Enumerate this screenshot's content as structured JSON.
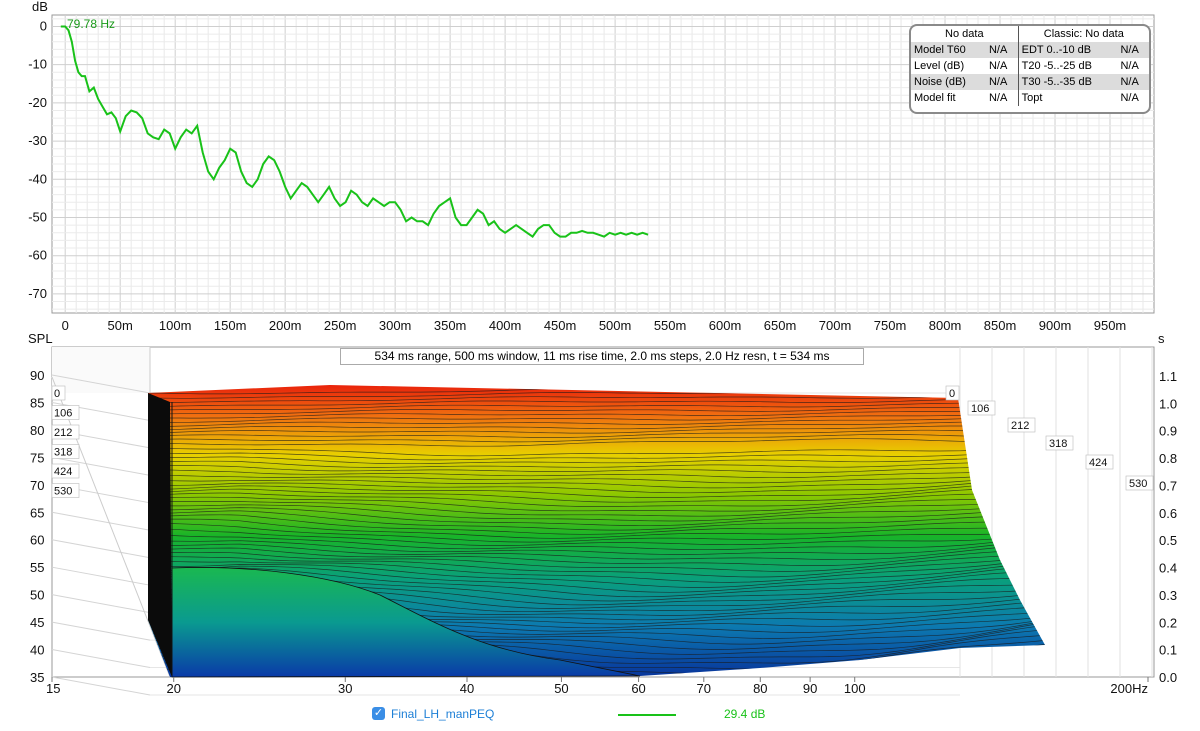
{
  "app": {
    "peak_label": "79.78 Hz",
    "legend": {
      "checked": true,
      "name": "Final_LH_manPEQ",
      "value": "29.4 dB",
      "line_color": "#19c219"
    }
  },
  "stats": {
    "header_left": "No data",
    "header_right": "Classic: No data",
    "rows": [
      {
        "k1": "Model T60",
        "v1": "N/A",
        "k2": "EDT  0..-10 dB",
        "v2": "N/A"
      },
      {
        "k1": "Level (dB)",
        "v1": "N/A",
        "k2": "T20 -5..-25 dB",
        "v2": "N/A"
      },
      {
        "k1": "Noise (dB)",
        "v1": "N/A",
        "k2": "T30 -5..-35 dB",
        "v2": "N/A"
      },
      {
        "k1": "Model fit",
        "v1": "N/A",
        "k2": "Topt",
        "v2": "N/A"
      }
    ]
  },
  "chart_data": [
    {
      "type": "line",
      "ylabel": "dB",
      "ylim": [
        -75,
        3
      ],
      "xlim_ms": [
        -12,
        990
      ],
      "y_ticks": [
        "0",
        "-10",
        "-20",
        "-30",
        "-40",
        "-50",
        "-60",
        "-70"
      ],
      "x_ticks": [
        "0",
        "50m",
        "100m",
        "150m",
        "200m",
        "250m",
        "300m",
        "350m",
        "400m",
        "450m",
        "500m",
        "550m",
        "600m",
        "650m",
        "700m",
        "750m",
        "800m",
        "850m",
        "900m",
        "950m"
      ],
      "grid": true,
      "series": [
        {
          "color": "#19c219",
          "x_ms": [
            -4,
            0,
            3,
            6,
            9,
            12,
            15,
            18,
            22,
            26,
            30,
            34,
            38,
            42,
            46,
            50,
            55,
            60,
            65,
            70,
            75,
            80,
            85,
            90,
            95,
            100,
            105,
            110,
            115,
            120,
            125,
            130,
            135,
            140,
            145,
            150,
            155,
            160,
            165,
            170,
            175,
            180,
            185,
            190,
            195,
            200,
            205,
            210,
            215,
            220,
            225,
            230,
            235,
            240,
            245,
            250,
            255,
            260,
            265,
            270,
            275,
            280,
            285,
            290,
            295,
            300,
            305,
            310,
            315,
            320,
            325,
            330,
            335,
            340,
            345,
            350,
            355,
            360,
            365,
            370,
            375,
            380,
            385,
            390,
            395,
            400,
            405,
            410,
            415,
            420,
            425,
            430,
            435,
            440,
            445,
            450,
            455,
            460,
            465,
            470,
            475,
            480,
            485,
            490,
            495,
            500,
            505,
            510,
            515,
            520,
            525,
            530
          ],
          "y_db": [
            0,
            0,
            -1,
            -4,
            -9,
            -12,
            -13,
            -13,
            -17,
            -16,
            -19,
            -21,
            -23,
            -22.5,
            -24,
            -27.5,
            -23.5,
            -22,
            -22.5,
            -24,
            -28,
            -29,
            -29.5,
            -27,
            -28,
            -32,
            -29,
            -27,
            -28,
            -26,
            -33,
            -38,
            -40,
            -37,
            -35,
            -32,
            -33,
            -38,
            -41,
            -42,
            -40,
            -36,
            -34,
            -35,
            -38,
            -42,
            -45,
            -43,
            -41,
            -42,
            -44,
            -46,
            -44,
            -42,
            -45,
            -47,
            -46,
            -43,
            -44,
            -46,
            -47,
            -45,
            -46,
            -47,
            -46,
            -46,
            -48,
            -51,
            -50,
            -51,
            -51,
            -52,
            -49,
            -47,
            -46,
            -45,
            -50,
            -52,
            -52,
            -50,
            -48,
            -49,
            -52,
            -51,
            -53,
            -54,
            -53,
            -52,
            -53,
            -54,
            -55,
            -53,
            -52,
            -52,
            -54,
            -55,
            -55,
            -54,
            -54,
            -53.5,
            -54,
            -54,
            -54.5,
            -55,
            -54,
            -54.5,
            -54,
            -54.5,
            -54,
            -54.5,
            -54,
            -54.5
          ]
        }
      ]
    },
    {
      "type": "waterfall",
      "title": "534 ms range, 500 ms window, 11 ms rise time, 2.0 ms steps,  2.0 Hz resn, t = 534 ms",
      "ylabel": "SPL",
      "y_ticks": [
        "90",
        "85",
        "80",
        "75",
        "70",
        "65",
        "60",
        "55",
        "50",
        "45",
        "40",
        "35"
      ],
      "right_axis_label": "s",
      "right_ticks": [
        "1.1",
        "1.0",
        "0.9",
        "0.8",
        "0.7",
        "0.6",
        "0.5",
        "0.4",
        "0.3",
        "0.2",
        "0.1",
        "0.0"
      ],
      "x_ticks": [
        "15",
        "20",
        "30",
        "40",
        "50",
        "60",
        "70",
        "80",
        "90",
        "100",
        "200Hz"
      ],
      "x_values_hz": [
        15,
        20,
        30,
        40,
        50,
        60,
        70,
        80,
        90,
        100,
        200
      ],
      "depth_labels_left": [
        "0",
        "106",
        "212",
        "318",
        "424",
        "530"
      ],
      "depth_labels_right": [
        "0",
        "106",
        "212",
        "318",
        "424",
        "530"
      ],
      "colors": [
        "#e8160a",
        "#f07010",
        "#e8d000",
        "#8ec800",
        "#18b428",
        "#0aa07a",
        "#0c7ab0",
        "#08309a"
      ]
    }
  ]
}
